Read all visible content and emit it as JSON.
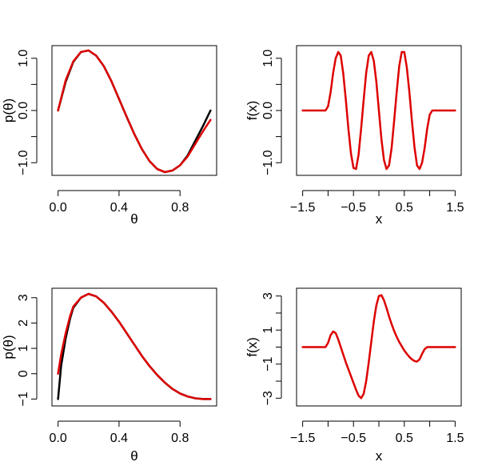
{
  "chart_data": [
    {
      "type": "line",
      "position": "top-left",
      "xlabel": "θ",
      "ylabel": "p(θ)",
      "xlim": [
        0,
        1
      ],
      "ylim": [
        -1.15,
        1.15
      ],
      "xticks": [
        0.0,
        0.4,
        0.8
      ],
      "xtick_labels": [
        "0.0",
        "0.4",
        "0.8"
      ],
      "yticks": [
        -1.0,
        -0.5,
        0.0,
        0.5,
        1.0
      ],
      "ytick_labels": [
        "−1.0",
        "",
        "0.0",
        "",
        "1.0"
      ],
      "series": [
        {
          "color": "#000000",
          "x": [
            0.0,
            0.05,
            0.1,
            0.15,
            0.2,
            0.25,
            0.3,
            0.35,
            0.4,
            0.45,
            0.5,
            0.55,
            0.6,
            0.65,
            0.7,
            0.75,
            0.8,
            0.85,
            0.9,
            0.95,
            1.0
          ],
          "y": [
            0.0,
            0.55,
            0.93,
            1.12,
            1.15,
            1.05,
            0.85,
            0.56,
            0.22,
            -0.12,
            -0.45,
            -0.74,
            -0.97,
            -1.12,
            -1.18,
            -1.15,
            -1.05,
            -0.86,
            -0.58,
            -0.3,
            0.0
          ]
        },
        {
          "color": "#dd0000",
          "x": [
            0.0,
            0.05,
            0.1,
            0.15,
            0.2,
            0.25,
            0.3,
            0.35,
            0.4,
            0.45,
            0.5,
            0.55,
            0.6,
            0.65,
            0.7,
            0.75,
            0.8,
            0.85,
            0.9,
            0.95,
            1.0
          ],
          "y": [
            0.0,
            0.58,
            0.94,
            1.12,
            1.15,
            1.05,
            0.85,
            0.56,
            0.22,
            -0.12,
            -0.45,
            -0.74,
            -0.97,
            -1.12,
            -1.18,
            -1.15,
            -1.05,
            -0.88,
            -0.64,
            -0.4,
            -0.18
          ]
        }
      ]
    },
    {
      "type": "line",
      "position": "top-right",
      "xlabel": "x",
      "ylabel": "f(x)",
      "xlim": [
        -1.5,
        1.5
      ],
      "ylim": [
        -1.15,
        1.15
      ],
      "xticks": [
        -1.5,
        -1.0,
        -0.5,
        0.0,
        0.5,
        1.0,
        1.5
      ],
      "xtick_labels": [
        "−1.5",
        "",
        "−0.5",
        "",
        "0.5",
        "",
        "1.5"
      ],
      "yticks": [
        -1.0,
        -0.5,
        0.0,
        0.5,
        1.0
      ],
      "ytick_labels": [
        "−1.0",
        "",
        "0.0",
        "",
        "1.0"
      ],
      "series": [
        {
          "color": "#dd0000",
          "x": [
            -1.5,
            -1.05,
            -1.0,
            -0.95,
            -0.9,
            -0.85,
            -0.8,
            -0.75,
            -0.7,
            -0.65,
            -0.6,
            -0.55,
            -0.5,
            -0.45,
            -0.4,
            -0.35,
            -0.3,
            -0.25,
            -0.2,
            -0.15,
            -0.1,
            -0.05,
            0.0,
            0.05,
            0.1,
            0.15,
            0.2,
            0.25,
            0.3,
            0.35,
            0.4,
            0.45,
            0.5,
            0.55,
            0.6,
            0.65,
            0.7,
            0.75,
            0.8,
            0.85,
            0.9,
            0.95,
            1.0,
            1.05,
            1.5
          ],
          "y": [
            0.0,
            0.0,
            0.08,
            0.35,
            0.72,
            1.0,
            1.12,
            1.05,
            0.7,
            0.2,
            -0.35,
            -0.82,
            -1.1,
            -1.12,
            -0.85,
            -0.35,
            0.2,
            0.72,
            1.05,
            1.12,
            0.95,
            0.55,
            0.0,
            -0.55,
            -0.95,
            -1.12,
            -1.05,
            -0.72,
            -0.2,
            0.35,
            0.85,
            1.12,
            1.12,
            0.82,
            0.35,
            -0.2,
            -0.7,
            -1.05,
            -1.12,
            -1.0,
            -0.72,
            -0.35,
            -0.08,
            0.0,
            0.0
          ]
        }
      ]
    },
    {
      "type": "line",
      "position": "bottom-left",
      "xlabel": "θ",
      "ylabel": "p(θ)",
      "xlim": [
        0,
        1
      ],
      "ylim": [
        -1.1,
        3.2
      ],
      "xticks": [
        0.0,
        0.4,
        0.8
      ],
      "xtick_labels": [
        "0.0",
        "0.4",
        "0.8"
      ],
      "yticks": [
        -1,
        0,
        1,
        2,
        3
      ],
      "ytick_labels": [
        "−1",
        "0",
        "1",
        "2",
        "3"
      ],
      "series": [
        {
          "color": "#000000",
          "x": [
            0.0,
            0.02,
            0.05,
            0.08,
            0.1,
            0.15,
            0.2,
            0.25,
            0.3,
            0.35,
            0.4,
            0.45,
            0.5,
            0.55,
            0.6,
            0.65,
            0.7,
            0.75,
            0.8,
            0.85,
            0.9,
            0.95,
            1.0
          ],
          "y": [
            -1.0,
            0.3,
            1.4,
            2.2,
            2.6,
            3.0,
            3.15,
            3.05,
            2.8,
            2.45,
            2.05,
            1.6,
            1.15,
            0.7,
            0.3,
            -0.05,
            -0.35,
            -0.6,
            -0.78,
            -0.9,
            -0.97,
            -1.0,
            -1.0
          ]
        },
        {
          "color": "#dd0000",
          "x": [
            0.0,
            0.02,
            0.05,
            0.08,
            0.1,
            0.15,
            0.2,
            0.25,
            0.3,
            0.35,
            0.4,
            0.45,
            0.5,
            0.55,
            0.6,
            0.65,
            0.7,
            0.75,
            0.8,
            0.85,
            0.9,
            0.95,
            1.0
          ],
          "y": [
            0.0,
            0.75,
            1.6,
            2.3,
            2.65,
            3.0,
            3.15,
            3.05,
            2.8,
            2.45,
            2.05,
            1.6,
            1.15,
            0.7,
            0.3,
            -0.05,
            -0.35,
            -0.6,
            -0.78,
            -0.9,
            -0.97,
            -1.0,
            -1.0
          ]
        }
      ]
    },
    {
      "type": "line",
      "position": "bottom-right",
      "xlabel": "x",
      "ylabel": "f(x)",
      "xlim": [
        -1.5,
        1.5
      ],
      "ylim": [
        -3.2,
        3.2
      ],
      "xticks": [
        -1.5,
        -1.0,
        -0.5,
        0.0,
        0.5,
        1.0,
        1.5
      ],
      "xtick_labels": [
        "−1.5",
        "",
        "−0.5",
        "",
        "0.5",
        "",
        "1.5"
      ],
      "yticks": [
        -3,
        -2,
        -1,
        0,
        1,
        2,
        3
      ],
      "ytick_labels": [
        "−3",
        "",
        "−1",
        "",
        "1",
        "",
        "3"
      ],
      "series": [
        {
          "color": "#dd0000",
          "x": [
            -1.5,
            -1.05,
            -1.0,
            -0.95,
            -0.9,
            -0.85,
            -0.8,
            -0.75,
            -0.7,
            -0.65,
            -0.6,
            -0.55,
            -0.5,
            -0.45,
            -0.4,
            -0.35,
            -0.3,
            -0.25,
            -0.2,
            -0.15,
            -0.1,
            -0.05,
            0.0,
            0.05,
            0.1,
            0.15,
            0.2,
            0.25,
            0.3,
            0.35,
            0.4,
            0.45,
            0.5,
            0.55,
            0.6,
            0.65,
            0.7,
            0.75,
            0.8,
            0.85,
            0.9,
            0.95,
            1.0,
            1.05,
            1.5
          ],
          "y": [
            0.0,
            0.0,
            0.25,
            0.7,
            0.92,
            0.82,
            0.45,
            0.0,
            -0.45,
            -0.9,
            -1.3,
            -1.7,
            -2.1,
            -2.5,
            -2.85,
            -3.0,
            -2.75,
            -2.0,
            -0.9,
            0.3,
            1.5,
            2.45,
            3.0,
            3.05,
            2.75,
            2.3,
            1.8,
            1.35,
            0.95,
            0.6,
            0.3,
            0.05,
            -0.2,
            -0.4,
            -0.58,
            -0.72,
            -0.82,
            -0.85,
            -0.72,
            -0.4,
            -0.12,
            0.0,
            0.0,
            0.0,
            0.0
          ]
        }
      ]
    }
  ]
}
